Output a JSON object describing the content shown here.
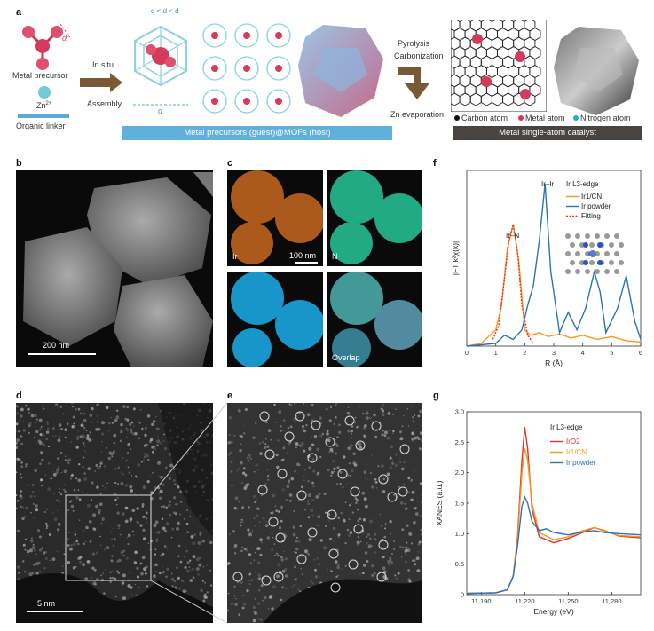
{
  "panel_a": {
    "label": "a",
    "metal_precursor": "Metal precursor",
    "d_m": "d",
    "zn": "Zn",
    "zn_sup": "2+",
    "organic_linker": "Organic linker",
    "in_situ": "In situ",
    "assembly": "Assembly",
    "dp_eq": "d",
    "inequality": "d < d < d",
    "d_c": "d",
    "pyrolysis": "Pyrolysis",
    "carbonization": "Carbonization",
    "zn_evaporation": "Zn evaporation",
    "legend_carbon": "Carbon atom",
    "legend_metal": "Metal atom",
    "legend_nitrogen": "Nitrogen atom",
    "bar_left": "Metal precursors (guest)@MOFs (host)",
    "bar_right": "Metal single-atom catalyst"
  },
  "panel_b": {
    "label": "b",
    "scale": "200 nm"
  },
  "panel_c": {
    "label": "c",
    "ir": "Ir",
    "n": "N",
    "scale": "100 nm",
    "overlap": "Overlap"
  },
  "panel_d": {
    "label": "d",
    "scale": "5 nm"
  },
  "panel_e": {
    "label": "e"
  },
  "chart_data": [
    {
      "type": "line",
      "panel": "f",
      "edge_label": "Ir L3-edge",
      "xlabel": "R (Å)",
      "ylabel": "|FT k²χ(k)|",
      "xlim": [
        0,
        6
      ],
      "xticks": [
        0,
        1,
        2,
        3,
        4,
        5,
        6
      ],
      "annotations": [
        "Ir–Ir",
        "Ir–N"
      ],
      "series": [
        {
          "name": "Ir1/CN",
          "color": "#f39a1e",
          "x": [
            0.0,
            0.5,
            0.8,
            1.0,
            1.2,
            1.4,
            1.6,
            1.8,
            2.0,
            2.2,
            2.5,
            2.8,
            3.2,
            3.6,
            4.0,
            4.5,
            5.0,
            5.5,
            6.0
          ],
          "y": [
            0.0,
            0.02,
            0.08,
            0.12,
            0.3,
            0.72,
            0.9,
            0.62,
            0.12,
            0.08,
            0.1,
            0.07,
            0.09,
            0.06,
            0.08,
            0.05,
            0.07,
            0.04,
            0.03
          ]
        },
        {
          "name": "Ir powder",
          "color": "#2a74b8",
          "x": [
            0.0,
            0.5,
            1.0,
            1.3,
            1.6,
            1.9,
            2.1,
            2.3,
            2.5,
            2.7,
            2.9,
            3.2,
            3.5,
            3.8,
            4.1,
            4.4,
            4.6,
            4.8,
            5.2,
            5.5,
            5.8,
            6.0
          ],
          "y": [
            0.0,
            0.01,
            0.02,
            0.08,
            0.05,
            0.12,
            0.3,
            0.45,
            0.78,
            1.2,
            0.55,
            0.1,
            0.25,
            0.12,
            0.28,
            0.55,
            0.4,
            0.1,
            0.28,
            0.52,
            0.18,
            0.05
          ]
        },
        {
          "name": "Fitting",
          "color": "#e5302a",
          "style": "dotted",
          "x": [
            0.9,
            1.1,
            1.3,
            1.45,
            1.6,
            1.75,
            1.9,
            2.1,
            2.3
          ],
          "y": [
            0.05,
            0.15,
            0.5,
            0.78,
            0.9,
            0.7,
            0.3,
            0.08,
            0.02
          ]
        }
      ]
    },
    {
      "type": "line",
      "panel": "g",
      "edge_label": "Ir L3-edge",
      "xlabel": "Energy (eV)",
      "ylabel": "XANES (a.u.)",
      "xlim": [
        11180,
        11300
      ],
      "ylim": [
        0,
        3.0
      ],
      "xticks": [
        11190,
        11220,
        11250,
        11280
      ],
      "xtick_labels": [
        "11,190",
        "11,220",
        "11,250",
        "11,280"
      ],
      "yticks": [
        0,
        0.5,
        1.0,
        1.5,
        2.0,
        2.5,
        3.0
      ],
      "ytick_labels": [
        "0",
        "0.5",
        "1.0",
        "1.5",
        "2.0",
        "2.5",
        "3.0"
      ],
      "series": [
        {
          "name": "IrO2",
          "color": "#e5302a",
          "x": [
            11180,
            11200,
            11208,
            11212,
            11215,
            11218,
            11220,
            11222,
            11225,
            11230,
            11240,
            11250,
            11260,
            11268,
            11275,
            11285,
            11300
          ],
          "y": [
            0.02,
            0.03,
            0.08,
            0.3,
            0.95,
            2.2,
            2.75,
            2.4,
            1.4,
            0.95,
            0.85,
            0.92,
            1.02,
            1.1,
            1.05,
            0.96,
            0.93
          ]
        },
        {
          "name": "Ir1/CN",
          "color": "#f39a1e",
          "x": [
            11180,
            11200,
            11208,
            11212,
            11215,
            11218,
            11220,
            11222,
            11225,
            11230,
            11240,
            11250,
            11260,
            11268,
            11275,
            11285,
            11300
          ],
          "y": [
            0.02,
            0.03,
            0.08,
            0.3,
            0.9,
            2.0,
            2.4,
            2.2,
            1.5,
            1.02,
            0.9,
            0.95,
            1.05,
            1.1,
            1.04,
            0.97,
            0.95
          ]
        },
        {
          "name": "Ir powder",
          "color": "#2a74b8",
          "x": [
            11180,
            11200,
            11208,
            11212,
            11215,
            11218,
            11220,
            11222,
            11225,
            11230,
            11235,
            11240,
            11250,
            11260,
            11268,
            11275,
            11285,
            11300
          ],
          "y": [
            0.02,
            0.03,
            0.08,
            0.3,
            0.8,
            1.45,
            1.6,
            1.5,
            1.2,
            1.05,
            1.08,
            1.02,
            0.98,
            1.03,
            1.05,
            1.02,
            1.0,
            0.98
          ]
        }
      ]
    }
  ]
}
